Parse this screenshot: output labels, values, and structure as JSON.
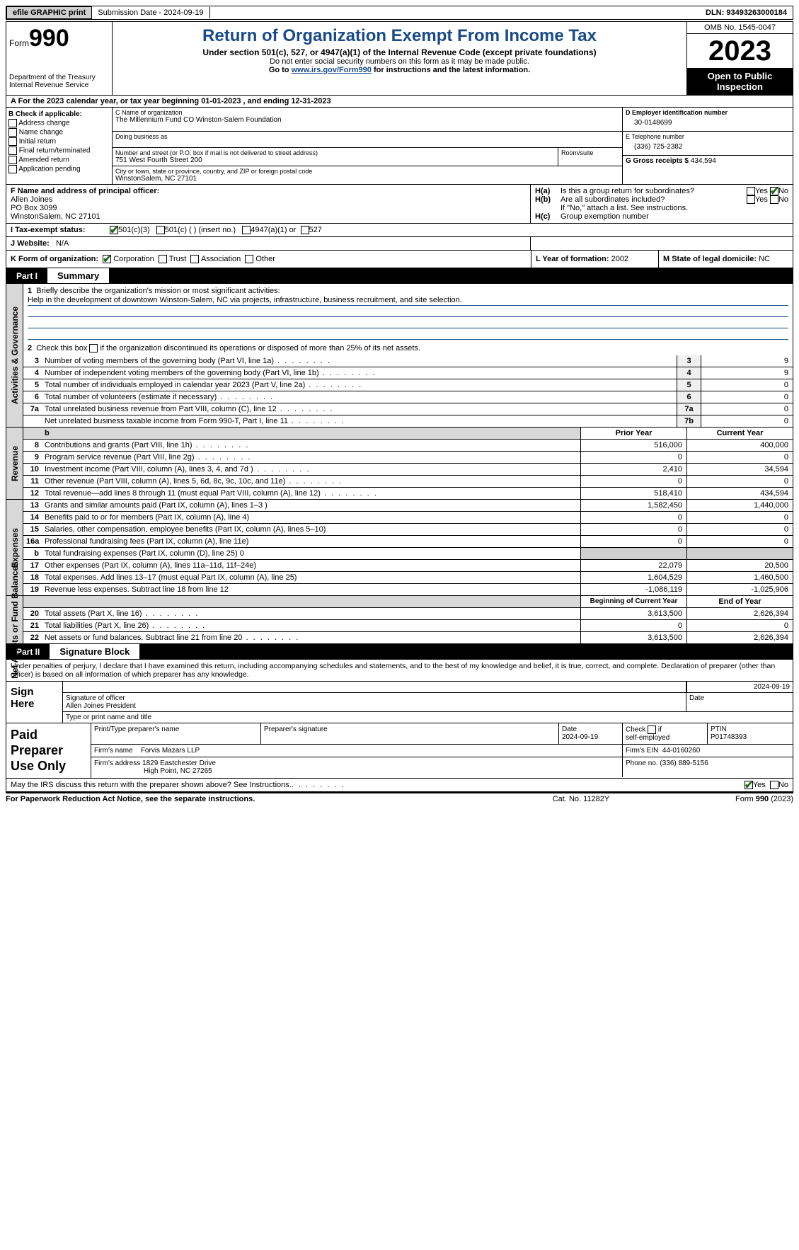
{
  "topbar": {
    "efile": "efile GRAPHIC print",
    "submission": "Submission Date - 2024-09-19",
    "dln": "DLN: 93493263000184"
  },
  "header": {
    "form_word": "Form",
    "form_num": "990",
    "dept": "Department of the Treasury\nInternal Revenue Service",
    "title": "Return of Organization Exempt From Income Tax",
    "sub1": "Under section 501(c), 527, or 4947(a)(1) of the Internal Revenue Code (except private foundations)",
    "sub2": "Do not enter social security numbers on this form as it may be made public.",
    "sub3_pre": "Go to ",
    "sub3_link": "www.irs.gov/Form990",
    "sub3_post": " for instructions and the latest information.",
    "omb": "OMB No. 1545-0047",
    "year": "2023",
    "open": "Open to Public Inspection"
  },
  "line_a": "A For the 2023 calendar year, or tax year beginning 01-01-2023   , and ending 12-31-2023",
  "box_b": {
    "title": "B Check if applicable:",
    "items": [
      "Address change",
      "Name change",
      "Initial return",
      "Final return/terminated",
      "Amended return",
      "Application pending"
    ]
  },
  "box_c": {
    "name_lbl": "C Name of organization",
    "name": "The Millennium Fund CO Winston-Salem Foundation",
    "dba_lbl": "Doing business as",
    "addr_lbl": "Number and street (or P.O. box if mail is not delivered to street address)",
    "addr": "751 West Fourth Street 200",
    "room_lbl": "Room/suite",
    "city_lbl": "City or town, state or province, country, and ZIP or foreign postal code",
    "city": "WinstonSalem, NC  27101"
  },
  "box_d": {
    "lbl": "D Employer identification number",
    "val": "30-0148699"
  },
  "box_e": {
    "lbl": "E Telephone number",
    "val": "(336) 725-2382"
  },
  "box_g": {
    "lbl": "G Gross receipts $",
    "val": "434,594"
  },
  "box_f": {
    "lbl": "F  Name and address of principal officer:",
    "name": "Allen Joines",
    "addr1": "PO Box 3099",
    "addr2": "WinstonSalem, NC  27101"
  },
  "box_h": {
    "a_lbl": "H(a)",
    "a_txt": "Is this a group return for subordinates?",
    "b_lbl": "H(b)",
    "b_txt": "Are all subordinates included?",
    "b_note": "If \"No,\" attach a list. See instructions.",
    "c_lbl": "H(c)",
    "c_txt": "Group exemption number",
    "yes": "Yes",
    "no": "No"
  },
  "row_i": {
    "lbl": "I   Tax-exempt status:",
    "o1": "501(c)(3)",
    "o2": "501(c) (  ) (insert no.)",
    "o3": "4947(a)(1) or",
    "o4": "527"
  },
  "row_j": {
    "lbl": "J   Website:",
    "val": "N/A"
  },
  "row_k": {
    "lbl": "K Form of organization:",
    "o1": "Corporation",
    "o2": "Trust",
    "o3": "Association",
    "o4": "Other",
    "l_lbl": "L Year of formation:",
    "l_val": "2002",
    "m_lbl": "M State of legal domicile:",
    "m_val": "NC"
  },
  "part1": {
    "num": "Part I",
    "title": "Summary"
  },
  "s1": {
    "vlabel": "Activities & Governance",
    "l1_n": "1",
    "l1_d": "Briefly describe the organization's mission or most significant activities:",
    "l1_mission": "Help in the development of downtown Winston-Salem, NC via projects, infrastructure, business recruitment, and site selection.",
    "l2_n": "2",
    "l2_d": "Check this box        if the organization discontinued its operations or disposed of more than 25% of its net assets.",
    "rows": [
      {
        "n": "3",
        "d": "Number of voting members of the governing body (Part VI, line 1a)",
        "nc": "3",
        "v": "9"
      },
      {
        "n": "4",
        "d": "Number of independent voting members of the governing body (Part VI, line 1b)",
        "nc": "4",
        "v": "9"
      },
      {
        "n": "5",
        "d": "Total number of individuals employed in calendar year 2023 (Part V, line 2a)",
        "nc": "5",
        "v": "0"
      },
      {
        "n": "6",
        "d": "Total number of volunteers (estimate if necessary)",
        "nc": "6",
        "v": "0"
      },
      {
        "n": "7a",
        "d": "Total unrelated business revenue from Part VIII, column (C), line 12",
        "nc": "7a",
        "v": "0"
      },
      {
        "n": "",
        "d": "Net unrelated business taxable income from Form 990-T, Part I, line 11",
        "nc": "7b",
        "v": "0"
      }
    ]
  },
  "s2": {
    "vlabel": "Revenue",
    "hdr_p": "Prior Year",
    "hdr_c": "Current Year",
    "rows": [
      {
        "n": "8",
        "d": "Contributions and grants (Part VIII, line 1h)",
        "p": "516,000",
        "c": "400,000"
      },
      {
        "n": "9",
        "d": "Program service revenue (Part VIII, line 2g)",
        "p": "0",
        "c": "0"
      },
      {
        "n": "10",
        "d": "Investment income (Part VIII, column (A), lines 3, 4, and 7d )",
        "p": "2,410",
        "c": "34,594"
      },
      {
        "n": "11",
        "d": "Other revenue (Part VIII, column (A), lines 5, 6d, 8c, 9c, 10c, and 11e)",
        "p": "0",
        "c": "0"
      },
      {
        "n": "12",
        "d": "Total revenue—add lines 8 through 11 (must equal Part VIII, column (A), line 12)",
        "p": "518,410",
        "c": "434,594"
      }
    ]
  },
  "s3": {
    "vlabel": "Expenses",
    "rows": [
      {
        "n": "13",
        "d": "Grants and similar amounts paid (Part IX, column (A), lines 1–3 )",
        "p": "1,582,450",
        "c": "1,440,000"
      },
      {
        "n": "14",
        "d": "Benefits paid to or for members (Part IX, column (A), line 4)",
        "p": "0",
        "c": "0"
      },
      {
        "n": "15",
        "d": "Salaries, other compensation, employee benefits (Part IX, column (A), lines 5–10)",
        "p": "0",
        "c": "0"
      },
      {
        "n": "16a",
        "d": "Professional fundraising fees (Part IX, column (A), line 11e)",
        "p": "0",
        "c": "0"
      },
      {
        "n": "b",
        "d": "Total fundraising expenses (Part IX, column (D), line 25) 0",
        "p": "",
        "c": "",
        "grey": true
      },
      {
        "n": "17",
        "d": "Other expenses (Part IX, column (A), lines 11a–11d, 11f–24e)",
        "p": "22,079",
        "c": "20,500"
      },
      {
        "n": "18",
        "d": "Total expenses. Add lines 13–17 (must equal Part IX, column (A), line 25)",
        "p": "1,604,529",
        "c": "1,460,500"
      },
      {
        "n": "19",
        "d": "Revenue less expenses. Subtract line 18 from line 12",
        "p": "-1,086,119",
        "c": "-1,025,906"
      }
    ]
  },
  "s4": {
    "vlabel": "Net Assets or Fund Balances",
    "hdr_p": "Beginning of Current Year",
    "hdr_c": "End of Year",
    "rows": [
      {
        "n": "20",
        "d": "Total assets (Part X, line 16)",
        "p": "3,613,500",
        "c": "2,626,394"
      },
      {
        "n": "21",
        "d": "Total liabilities (Part X, line 26)",
        "p": "0",
        "c": "0"
      },
      {
        "n": "22",
        "d": "Net assets or fund balances. Subtract line 21 from line 20",
        "p": "3,613,500",
        "c": "2,626,394"
      }
    ]
  },
  "part2": {
    "num": "Part II",
    "title": "Signature Block"
  },
  "decl": "Under penalties of perjury, I declare that I have examined this return, including accompanying schedules and statements, and to the best of my knowledge and belief, it is true, correct, and complete. Declaration of preparer (other than officer) is based on all information of which preparer has any knowledge.",
  "sign": {
    "lbl": "Sign Here",
    "sig_lbl": "Signature of officer",
    "date_lbl": "Date",
    "date": "2024-09-19",
    "name": "Allen Joines  President",
    "type_lbl": "Type or print name and title"
  },
  "prep": {
    "lbl": "Paid Preparer Use Only",
    "r1": {
      "c1": "Print/Type preparer's name",
      "c2": "Preparer's signature",
      "c3": "Date",
      "c3v": "2024-09-19",
      "c4": "Check        if self-employed",
      "c5": "PTIN",
      "c5v": "P01748393"
    },
    "r2": {
      "c1": "Firm's name",
      "c1v": "Forvis Mazars LLP",
      "c2": "Firm's EIN",
      "c2v": "44-0160260"
    },
    "r3": {
      "c1": "Firm's address",
      "c1v": "1829 Eastchester Drive",
      "c1v2": "High Point, NC  27265",
      "c2": "Phone no.",
      "c2v": "(336) 889-5156"
    }
  },
  "discuss": {
    "txt": "May the IRS discuss this return with the preparer shown above? See Instructions.",
    "yes": "Yes",
    "no": "No"
  },
  "footer": {
    "l": "For Paperwork Reduction Act Notice, see the separate instructions.",
    "m": "Cat. No. 11282Y",
    "r": "Form 990 (2023)"
  }
}
